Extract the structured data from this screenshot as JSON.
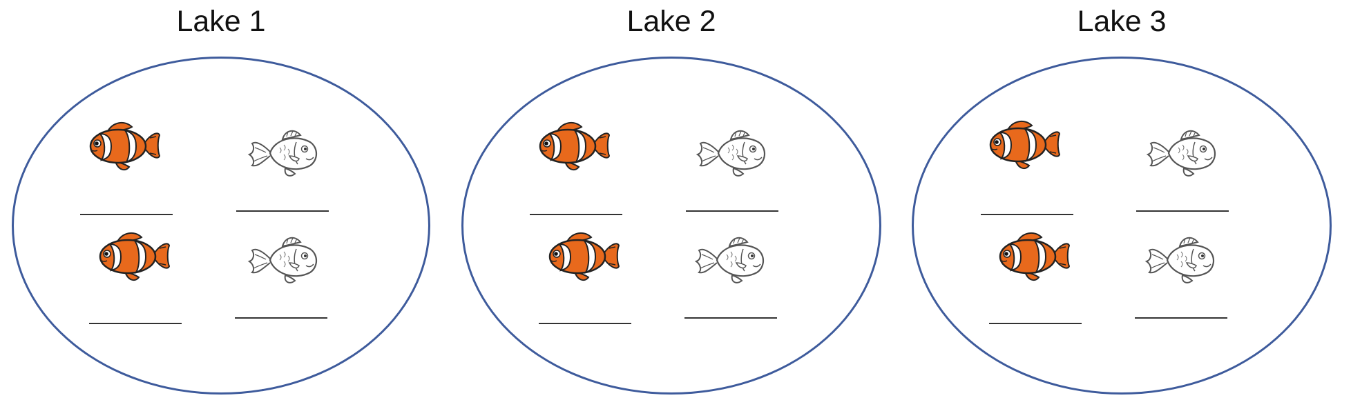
{
  "lakes": [
    {
      "title": "Lake 1"
    },
    {
      "title": "Lake 2"
    },
    {
      "title": "Lake 3"
    }
  ],
  "icons": {
    "clownfish": "clownfish-icon",
    "outline_fish": "fish-outline-icon"
  },
  "colors": {
    "lake_border": "#3e5b9c",
    "clownfish_orange": "#e8691c",
    "outline": "#555555"
  }
}
